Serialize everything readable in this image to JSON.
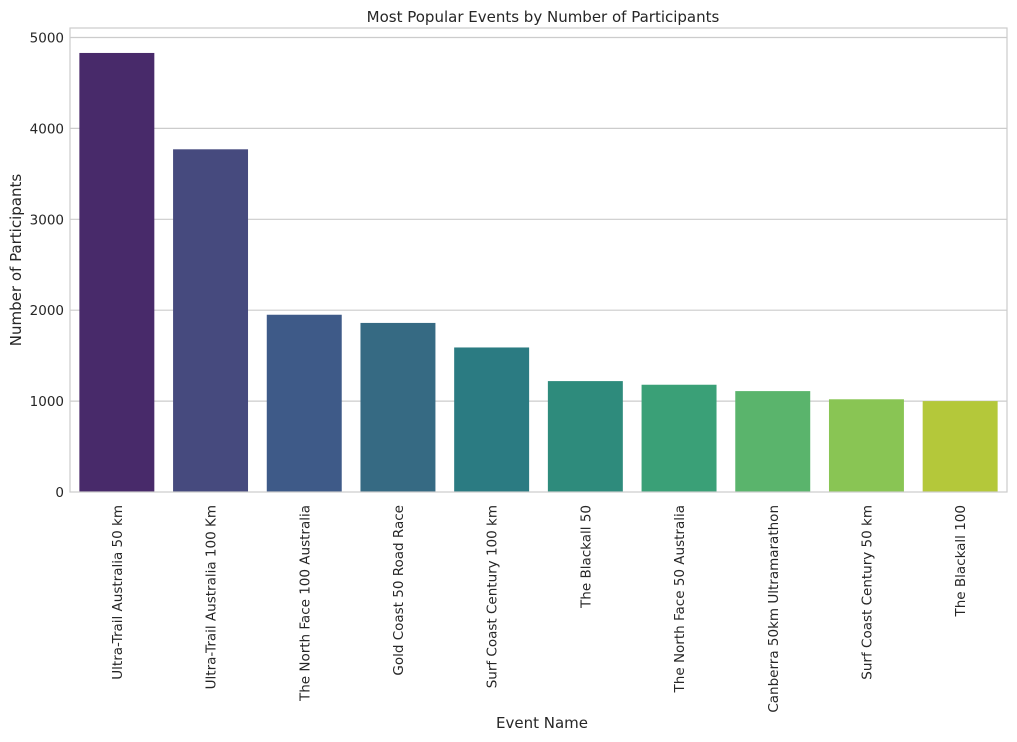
{
  "chart_data": {
    "type": "bar",
    "title": "Most Popular Events by Number of Participants",
    "xlabel": "Event Name",
    "ylabel": "Number of Participants",
    "ylim": [
      0,
      5000
    ],
    "yticks": [
      0,
      1000,
      2000,
      3000,
      4000,
      5000
    ],
    "ytick_labels": [
      "0",
      "1000",
      "2000",
      "3000",
      "4000",
      "5000"
    ],
    "grid": true,
    "categories": [
      "Ultra-Trail Australia 50 km",
      "Ultra-Trail Australia 100 Km",
      "The North Face 100 Australia",
      "Gold Coast 50 Road Race",
      "Surf Coast Century 100 km",
      "The Blackall 50",
      "The North Face 50 Australia",
      "Canberra 50km Ultramarathon",
      "Surf Coast Century 50 km",
      "The Blackall 100"
    ],
    "values": [
      4830,
      3770,
      1950,
      1860,
      1590,
      1220,
      1180,
      1110,
      1020,
      1000
    ],
    "colors": [
      "#482a6a",
      "#464a7e",
      "#3e5a88",
      "#366a83",
      "#2b7b82",
      "#2e8b7c",
      "#3aa077",
      "#5ab46c",
      "#89c554",
      "#b4c83a"
    ]
  }
}
